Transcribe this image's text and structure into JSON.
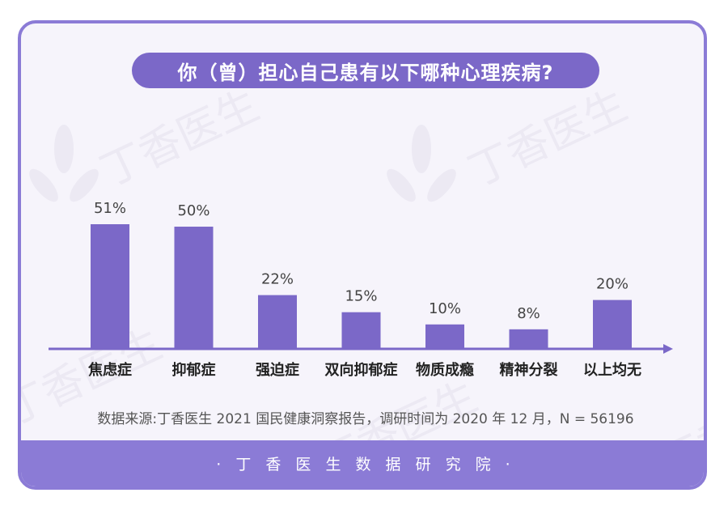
{
  "title": "你（曾）担心自己患有以下哪种心理疾病?",
  "watermark_text": "丁香医生",
  "chart_data": {
    "type": "bar",
    "categories": [
      "焦虑症",
      "抑郁症",
      "强迫症",
      "双向抑郁症",
      "物质成瘾",
      "精神分裂",
      "以上均无"
    ],
    "values": [
      51,
      50,
      22,
      15,
      10,
      8,
      20
    ],
    "value_labels": [
      "51%",
      "50%",
      "22%",
      "15%",
      "10%",
      "8%",
      "20%"
    ],
    "unit": "%",
    "ylim": [
      0,
      60
    ],
    "grid": false,
    "legend": "none",
    "bar_color": "#7b68c8",
    "axis_color": "#7b68c8"
  },
  "source_note": "数据来源:丁香医生 2021 国民健康洞察报告，调研时间为 2020 年 12 月，N = 56196",
  "footer_text": "· 丁 香 医 生 数 据 研 究 院 ·",
  "colors": {
    "accent": "#7b68c8",
    "footer": "#8b7bd6",
    "background": "#f6f4fb"
  }
}
